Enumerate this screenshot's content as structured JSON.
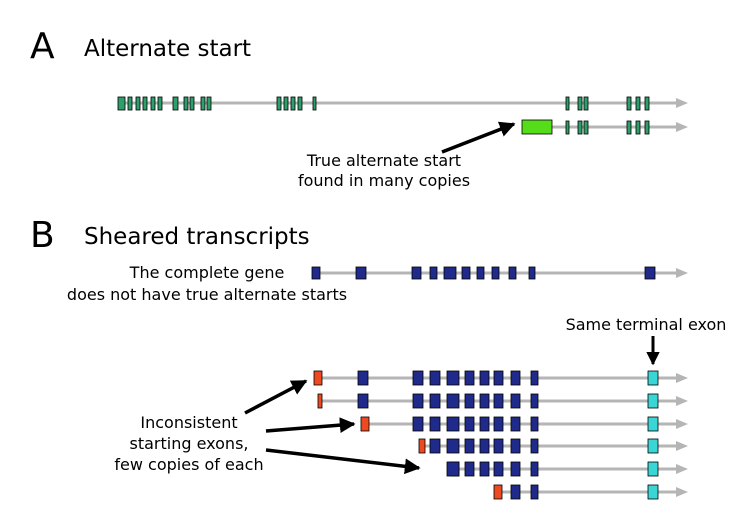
{
  "panels": {
    "a": {
      "letter": "A",
      "title": "Alternate start"
    },
    "b": {
      "letter": "B",
      "title": "Sheared transcripts"
    }
  },
  "annotations": {
    "true_start_line1": "True alternate start",
    "true_start_line2": "found in many copies",
    "complete_gene_line1": "The complete gene",
    "complete_gene_line2": "does not have true alternate starts",
    "terminal_exon": "Same terminal exon",
    "inconsistent_line1": "Inconsistent",
    "inconsistent_line2": "starting exons,",
    "inconsistent_line3": "few copies of each"
  },
  "colors": {
    "line": "#b5b5b5",
    "green_exon": "#2e9e6a",
    "lime_exon": "#55dd1a",
    "blue_exon": "#1f2a8a",
    "red_exon": "#ee4a22",
    "cyan_exon": "#3ad6d6",
    "stroke": "#000000"
  }
}
